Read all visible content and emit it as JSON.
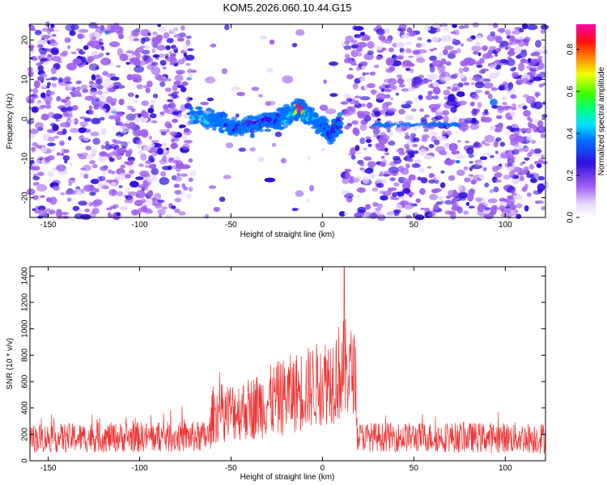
{
  "title": "KOM5.2026.060.10.44.G15",
  "chart_data": [
    {
      "type": "heatmap",
      "xlabel": "Height of straight line (km)",
      "ylabel": "Frequency (Hz)",
      "xlim": [
        -160,
        122
      ],
      "ylim": [
        -25,
        24
      ],
      "xticks": [
        -150,
        -100,
        -50,
        0,
        50,
        100
      ],
      "yticks": [
        -20,
        -10,
        0,
        10,
        20
      ],
      "colorbar": {
        "label": "Normalized spectral amplitude",
        "range": [
          0,
          0.92
        ],
        "ticks": [
          "0.0",
          "0.2",
          "0.4",
          "0.6",
          "0.8"
        ],
        "tick_values": [
          0,
          0.2,
          0.4,
          0.6,
          0.8
        ]
      },
      "signal_band": {
        "description_points": [
          {
            "x": -72,
            "y": 1,
            "amp": 0.4
          },
          {
            "x": -60,
            "y": 0,
            "amp": 0.38
          },
          {
            "x": -50,
            "y": -2,
            "amp": 0.3
          },
          {
            "x": -40,
            "y": -2,
            "amp": 0.3
          },
          {
            "x": -30,
            "y": -1,
            "amp": 0.25
          },
          {
            "x": -22,
            "y": 0,
            "amp": 0.35
          },
          {
            "x": -15,
            "y": 2,
            "amp": 0.45
          },
          {
            "x": -12,
            "y": 2.5,
            "amp": 0.92
          },
          {
            "x": -8,
            "y": 1,
            "amp": 0.4
          },
          {
            "x": 0,
            "y": -2,
            "amp": 0.35
          },
          {
            "x": 5,
            "y": -4,
            "amp": 0.3
          },
          {
            "x": 10,
            "y": -1,
            "amp": 0.25
          }
        ],
        "trail_y": -1.5,
        "trail_x": [
          28,
          75
        ]
      }
    },
    {
      "type": "line",
      "xlabel": "Height of straight line (km)",
      "ylabel": "SNR (10 * v/v)",
      "xlim": [
        -160,
        122
      ],
      "ylim": [
        0,
        1470
      ],
      "xticks": [
        -150,
        -100,
        -50,
        0,
        50,
        100
      ],
      "yticks": [
        0,
        200,
        400,
        600,
        800,
        1000,
        1200,
        1400
      ],
      "color": "#ee3333",
      "envelope": [
        {
          "x": -160,
          "base": 160,
          "spread": 110
        },
        {
          "x": -62,
          "base": 170,
          "spread": 120
        },
        {
          "x": -60,
          "base": 330,
          "spread": 220
        },
        {
          "x": -40,
          "base": 370,
          "spread": 240
        },
        {
          "x": -20,
          "base": 460,
          "spread": 300
        },
        {
          "x": 0,
          "base": 560,
          "spread": 330
        },
        {
          "x": 12,
          "base": 650,
          "spread": 400
        },
        {
          "x": 18,
          "base": 640,
          "spread": 300
        },
        {
          "x": 19,
          "base": 170,
          "spread": 110
        },
        {
          "x": 122,
          "base": 160,
          "spread": 120
        }
      ],
      "peak": {
        "x": 12,
        "y": 1470
      }
    }
  ]
}
